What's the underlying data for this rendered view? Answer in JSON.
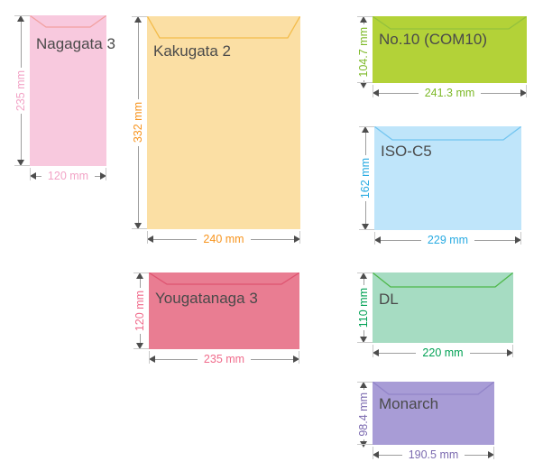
{
  "page": {
    "background": "#FFFFFF"
  },
  "label_text_color": "#4A4A4A",
  "dimension_style": {
    "line_color": "#9E9E9E",
    "arrowhead_color": "#4D4D4D",
    "extension_tick_color": "#C9C9C9",
    "unit": "mm"
  },
  "envelopes": [
    {
      "id": "nagagata-3",
      "name": "Nagagata 3",
      "height_label": "235 mm",
      "width_label": "120 mm",
      "height_mm": 235,
      "width_mm": 120,
      "orientation": "portrait",
      "fill": "#F8C9DE",
      "flap_stroke": "#F2A0A0",
      "dim_text_color": "#F2A3C6"
    },
    {
      "id": "kakugata-2",
      "name": "Kakugata 2",
      "height_label": "332 mm",
      "width_label": "240 mm",
      "height_mm": 332,
      "width_mm": 240,
      "orientation": "portrait",
      "fill": "#FBDFA4",
      "flap_stroke": "#F3BC4B",
      "dim_text_color": "#F7941E"
    },
    {
      "id": "yougatanaga-3",
      "name": "Yougatanaga 3",
      "height_label": "120 mm",
      "width_label": "235 mm",
      "height_mm": 120,
      "width_mm": 235,
      "orientation": "landscape",
      "fill": "#E97D92",
      "flap_stroke": "#DE5470",
      "dim_text_color": "#F06C8C"
    },
    {
      "id": "no10-com10",
      "name": "No.10 (COM10)",
      "height_label": "104.7 mm",
      "width_label": "241.3 mm",
      "height_mm": 104.7,
      "width_mm": 241.3,
      "orientation": "landscape",
      "fill": "#B3D238",
      "flap_stroke": "#93C13D",
      "dim_text_color": "#7DB928"
    },
    {
      "id": "iso-c5",
      "name": "ISO-C5",
      "height_label": "162 mm",
      "width_label": "229 mm",
      "height_mm": 162,
      "width_mm": 229,
      "orientation": "landscape",
      "fill": "#BFE5FA",
      "flap_stroke": "#72C5F0",
      "dim_text_color": "#29ABE2"
    },
    {
      "id": "dl",
      "name": "DL",
      "height_label": "110 mm",
      "width_label": "220 mm",
      "height_mm": 110,
      "width_mm": 220,
      "orientation": "landscape",
      "fill": "#A6DCC2",
      "flap_stroke": "#4DB748",
      "dim_text_color": "#00A154"
    },
    {
      "id": "monarch",
      "name": "Monarch",
      "height_label": "98.4 mm",
      "width_label": "190.5 mm",
      "height_mm": 98.4,
      "width_mm": 190.5,
      "orientation": "landscape",
      "fill": "#A89CD6",
      "flap_stroke": "#9184C8",
      "dim_text_color": "#7C6BB0"
    }
  ]
}
